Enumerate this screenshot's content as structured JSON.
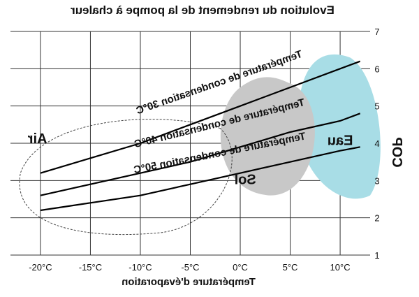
{
  "chart_data": {
    "type": "line",
    "title": "Evolution du rendement de la pompe à chaleur",
    "xlabel": "Température d'évaporation",
    "ylabel": "COP",
    "x_ticks": [
      "10°C",
      "5°C",
      "0°C",
      "-5°C",
      "-10°C",
      "-15°C",
      "-20°C"
    ],
    "y_ticks": [
      "1",
      "2",
      "3",
      "4",
      "5",
      "6",
      "7"
    ],
    "xlim": [
      13,
      -23
    ],
    "ylim": [
      1,
      7
    ],
    "grid": true,
    "series": [
      {
        "name": "Température de condensation 30°C",
        "x": [
          12,
          10,
          5,
          0,
          -5,
          -10,
          -15,
          -20
        ],
        "y": [
          6.2,
          6.0,
          5.5,
          5.0,
          4.5,
          4.0,
          3.6,
          3.2
        ]
      },
      {
        "name": "Température de condensation 40°C",
        "x": [
          12,
          10,
          5,
          0,
          -5,
          -10,
          -15,
          -20
        ],
        "y": [
          4.8,
          4.6,
          4.3,
          3.9,
          3.5,
          3.2,
          2.9,
          2.6
        ]
      },
      {
        "name": "Température de condensation 50°C",
        "x": [
          12,
          10,
          5,
          0,
          -5,
          -10,
          -15,
          -20
        ],
        "y": [
          3.9,
          3.8,
          3.5,
          3.2,
          2.9,
          2.6,
          2.4,
          2.2
        ]
      }
    ],
    "zones": [
      {
        "label": "Eau",
        "color": "#a8dde6"
      },
      {
        "label": "Sol",
        "color": "#c8c8c8"
      },
      {
        "label": "Air",
        "color": "#ffffff"
      }
    ]
  }
}
